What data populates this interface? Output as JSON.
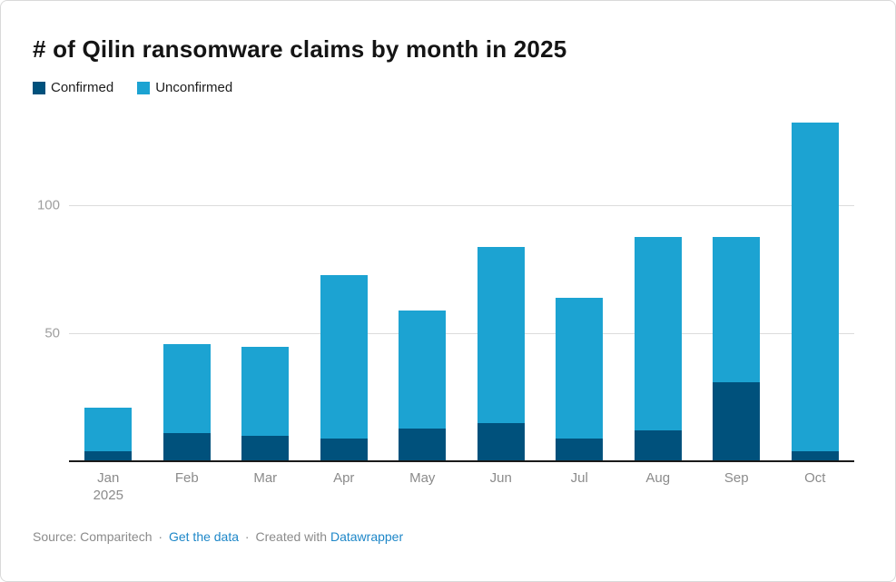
{
  "title": "# of Qilin ransomware claims by month in 2025",
  "colors": {
    "confirmed": "#00517c",
    "unconfirmed": "#1ca3d2",
    "link_blue": "#1e87c8"
  },
  "chart_data": {
    "type": "bar",
    "subtype": "stacked-column",
    "title": "# of Qilin ransomware claims by month in 2025",
    "categories": [
      "Jan 2025",
      "Feb",
      "Mar",
      "Apr",
      "May",
      "Jun",
      "Jul",
      "Aug",
      "Sep",
      "Oct"
    ],
    "series": [
      {
        "name": "Confirmed",
        "color": "#00517c",
        "values": [
          4,
          11,
          10,
          9,
          13,
          15,
          9,
          12,
          31,
          4
        ]
      },
      {
        "name": "Unconfirmed",
        "color": "#1ca3d2",
        "values": [
          17,
          35,
          35,
          64,
          46,
          69,
          55,
          76,
          57,
          129
        ]
      }
    ],
    "totals": [
      21,
      46,
      45,
      73,
      59,
      84,
      64,
      88,
      88,
      133
    ],
    "y_ticks": [
      50,
      100
    ],
    "ylim": [
      0,
      138
    ],
    "grid": "horizontal",
    "legend_position": "top-left",
    "xlabel": "",
    "ylabel": ""
  },
  "footer": {
    "source_label": "Source: Comparitech",
    "separator": "·",
    "get_data_link": "Get the data",
    "created_with": "Created with",
    "datawrapper_link": "Datawrapper"
  }
}
